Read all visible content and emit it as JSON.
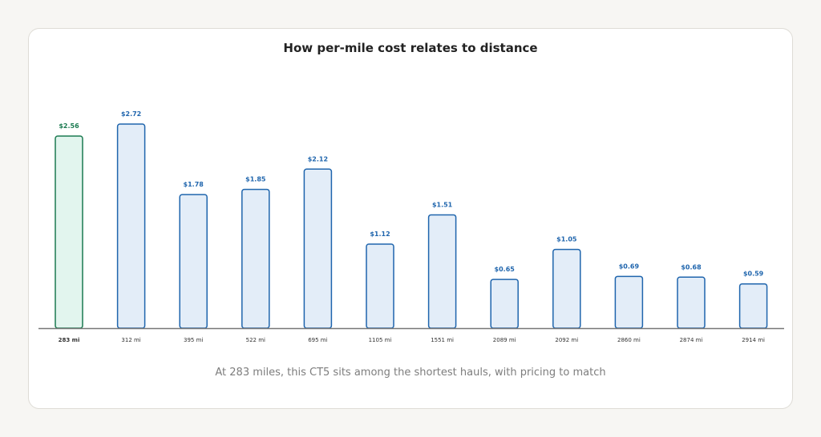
{
  "chart_data": {
    "type": "bar",
    "title": "How per-mile cost relates to distance",
    "subtitle": "At 283 miles, this CT5 sits among the shortest hauls, with pricing to match",
    "xlabel": "",
    "ylabel": "",
    "categories": [
      "283 mi",
      "312 mi",
      "395 mi",
      "522 mi",
      "695 mi",
      "1105 mi",
      "1551 mi",
      "2089 mi",
      "2092 mi",
      "2860 mi",
      "2874 mi",
      "2914 mi"
    ],
    "values": [
      2.56,
      2.72,
      1.78,
      1.85,
      2.12,
      1.12,
      1.51,
      0.65,
      1.05,
      0.69,
      0.68,
      0.59
    ],
    "value_labels": [
      "$2.56",
      "$2.72",
      "$1.78",
      "$1.85",
      "$2.12",
      "$1.12",
      "$1.51",
      "$0.65",
      "$1.05",
      "$0.69",
      "$0.68",
      "$0.59"
    ],
    "highlight_index": 0,
    "ylim": [
      0,
      2.72
    ],
    "grid": false,
    "legend": "none",
    "colors": {
      "bar_fill": "#e3edf8",
      "bar_stroke": "#1f65ad",
      "bar_label": "#1f65ad",
      "highlight_fill": "#e2f5ee",
      "highlight_stroke": "#1b7a50",
      "highlight_label": "#1b7a50",
      "axis": "#777777",
      "tick_label": "#333333"
    }
  }
}
